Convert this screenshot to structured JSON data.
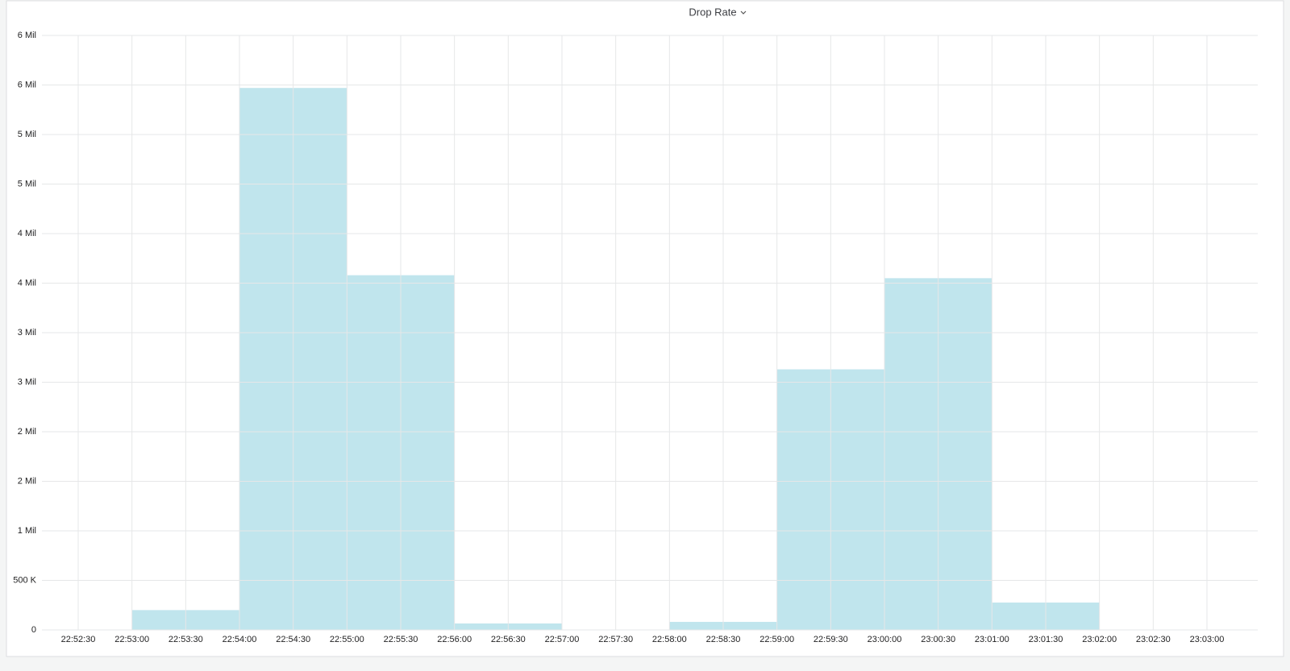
{
  "chart_data": {
    "type": "bar",
    "title": "Drop Rate",
    "x": [
      "22:53:00",
      "22:54:00",
      "22:55:00",
      "22:56:00",
      "22:58:00",
      "22:59:00",
      "23:00:00",
      "23:01:00"
    ],
    "values": [
      200000,
      5470000,
      3580000,
      65000,
      81000,
      2630000,
      3550000,
      276000
    ],
    "color": "#bde4ec",
    "ylim": [
      0,
      6000000
    ],
    "yticks": [
      0,
      {
        "value": 500000,
        "label": "500 K"
      },
      {
        "value": 1000000,
        "label": "1 Mil"
      },
      {
        "value": 1500000,
        "label": "2 Mil"
      },
      {
        "value": 2000000,
        "label": "2 Mil"
      },
      {
        "value": 2500000,
        "label": "3 Mil"
      },
      {
        "value": 3000000,
        "label": "3 Mil"
      },
      {
        "value": 3500000,
        "label": "4 Mil"
      },
      {
        "value": 4000000,
        "label": "4 Mil"
      },
      {
        "value": 4500000,
        "label": "5 Mil"
      },
      {
        "value": 5000000,
        "label": "5 Mil"
      },
      {
        "value": 5500000,
        "label": "6 Mil"
      },
      {
        "value": 6000000,
        "label": "6 Mil"
      }
    ],
    "xticks": [
      "22:52:30",
      "22:53:00",
      "22:53:30",
      "22:54:00",
      "22:54:30",
      "22:55:00",
      "22:55:30",
      "22:56:00",
      "22:56:30",
      "22:57:00",
      "22:57:30",
      "22:58:00",
      "22:58:30",
      "22:59:00",
      "22:59:30",
      "23:00:00",
      "23:00:30",
      "23:01:00",
      "23:01:30",
      "23:02:00",
      "23:02:30",
      "23:03:00"
    ],
    "grid": true
  }
}
